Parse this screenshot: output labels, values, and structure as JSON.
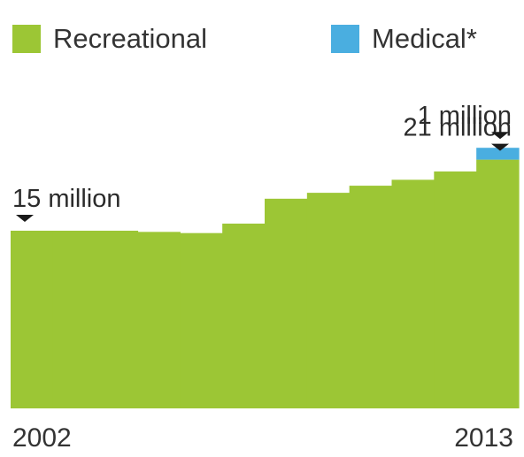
{
  "chart_data": {
    "type": "area",
    "x": [
      2002,
      2003,
      2004,
      2005,
      2006,
      2007,
      2008,
      2009,
      2010,
      2011,
      2012,
      2013
    ],
    "series": [
      {
        "name": "Recreational",
        "color": "#9cc635",
        "values": [
          15.0,
          15.0,
          15.0,
          14.9,
          14.8,
          15.6,
          17.7,
          18.2,
          18.8,
          19.3,
          20.0,
          21.0
        ]
      },
      {
        "name": "Medical*",
        "color": "#4aaee0",
        "values": [
          0,
          0,
          0,
          0,
          0,
          0,
          0,
          0,
          0,
          0,
          0,
          1.0
        ]
      }
    ],
    "xlim": [
      2002,
      2013
    ],
    "x_tick_labels": [
      "2002",
      "2013"
    ],
    "legend_position": "top",
    "grid": false,
    "annotations": [
      {
        "text": "15 million",
        "target": "Recreational",
        "at": 2002
      },
      {
        "text": "21 million",
        "target": "Recreational",
        "at": 2013
      },
      {
        "text": "1 million",
        "target": "Medical*",
        "at": 2013
      }
    ],
    "marker_color": "#1a1a1a"
  }
}
